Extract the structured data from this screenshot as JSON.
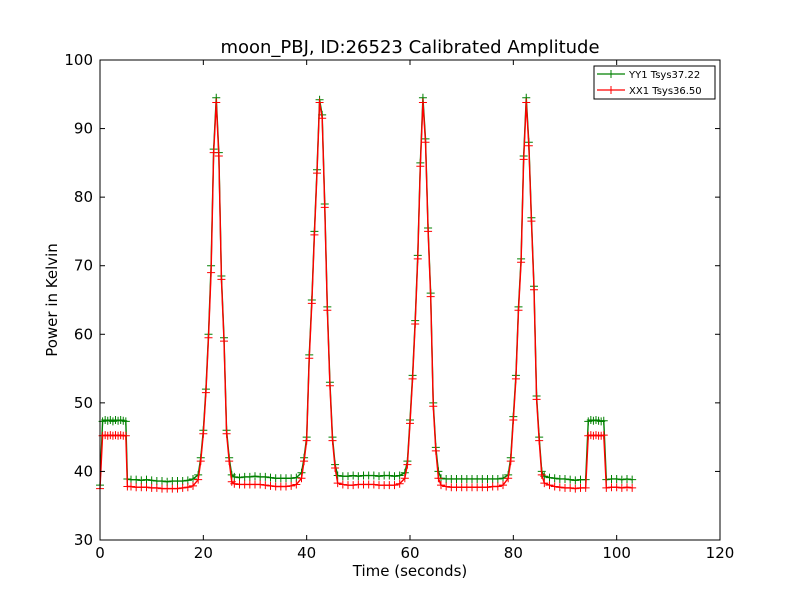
{
  "chart_data": {
    "type": "line",
    "title": "moon_PBJ, ID:26523 Calibrated Amplitude",
    "xlabel": "Time (seconds)",
    "ylabel": "Power in Kelvin",
    "xlim": [
      0,
      120
    ],
    "ylim": [
      30,
      100
    ],
    "xticks": [
      0,
      20,
      40,
      60,
      80,
      100,
      120
    ],
    "yticks": [
      30,
      40,
      50,
      60,
      70,
      80,
      90,
      100
    ],
    "xtick_labels": [
      "0",
      "20",
      "40",
      "60",
      "80",
      "100",
      "120"
    ],
    "ytick_labels": [
      "30",
      "40",
      "50",
      "60",
      "70",
      "80",
      "90",
      "100"
    ],
    "grid": false,
    "legend_position": "top-right",
    "marker": "+",
    "series": [
      {
        "name": "YY1 Tsys37.22",
        "color": "#008000",
        "points": [
          [
            0,
            38.0
          ],
          [
            0.5,
            47.3
          ],
          [
            1,
            47.5
          ],
          [
            1.5,
            47.4
          ],
          [
            2,
            47.5
          ],
          [
            2.5,
            47.3
          ],
          [
            3,
            47.5
          ],
          [
            3.5,
            47.4
          ],
          [
            4,
            47.5
          ],
          [
            4.5,
            47.4
          ],
          [
            5,
            47.3
          ],
          [
            5.3,
            38.9
          ],
          [
            6,
            38.8
          ],
          [
            7,
            38.8
          ],
          [
            8,
            38.7
          ],
          [
            9,
            38.8
          ],
          [
            10,
            38.7
          ],
          [
            11,
            38.6
          ],
          [
            12,
            38.6
          ],
          [
            13,
            38.5
          ],
          [
            14,
            38.6
          ],
          [
            15,
            38.6
          ],
          [
            16,
            38.6
          ],
          [
            17,
            38.7
          ],
          [
            18,
            38.9
          ],
          [
            19,
            39.5
          ],
          [
            19.5,
            42.0
          ],
          [
            20,
            46.0
          ],
          [
            20.5,
            52.0
          ],
          [
            21,
            60.0
          ],
          [
            21.5,
            70.0
          ],
          [
            22,
            87.0
          ],
          [
            22.5,
            94.5
          ],
          [
            23,
            86.5
          ],
          [
            23.5,
            68.5
          ],
          [
            24,
            59.5
          ],
          [
            24.5,
            46.0
          ],
          [
            25,
            42.0
          ],
          [
            25.5,
            39.5
          ],
          [
            26,
            39.2
          ],
          [
            27,
            39.1
          ],
          [
            28,
            39.2
          ],
          [
            29,
            39.2
          ],
          [
            30,
            39.3
          ],
          [
            31,
            39.2
          ],
          [
            32,
            39.2
          ],
          [
            33,
            39.1
          ],
          [
            34,
            39.0
          ],
          [
            35,
            39.0
          ],
          [
            36,
            39.0
          ],
          [
            37,
            39.0
          ],
          [
            38,
            39.1
          ],
          [
            39,
            39.8
          ],
          [
            39.5,
            42.0
          ],
          [
            40,
            45.0
          ],
          [
            40.5,
            57.0
          ],
          [
            41,
            65.0
          ],
          [
            41.5,
            75.0
          ],
          [
            42,
            84.0
          ],
          [
            42.5,
            94.2
          ],
          [
            43,
            92.0
          ],
          [
            43.5,
            79.0
          ],
          [
            44,
            64.0
          ],
          [
            44.5,
            53.0
          ],
          [
            45,
            45.0
          ],
          [
            45.5,
            41.0
          ],
          [
            46,
            39.4
          ],
          [
            47,
            39.3
          ],
          [
            48,
            39.3
          ],
          [
            49,
            39.4
          ],
          [
            50,
            39.3
          ],
          [
            51,
            39.4
          ],
          [
            52,
            39.4
          ],
          [
            53,
            39.4
          ],
          [
            54,
            39.3
          ],
          [
            55,
            39.4
          ],
          [
            56,
            39.4
          ],
          [
            57,
            39.3
          ],
          [
            58,
            39.4
          ],
          [
            59,
            39.8
          ],
          [
            59.5,
            41.5
          ],
          [
            60,
            47.5
          ],
          [
            60.5,
            54.0
          ],
          [
            61,
            62.0
          ],
          [
            61.5,
            71.5
          ],
          [
            62,
            85.0
          ],
          [
            62.5,
            94.5
          ],
          [
            63,
            88.5
          ],
          [
            63.5,
            75.5
          ],
          [
            64,
            66.0
          ],
          [
            64.5,
            50.0
          ],
          [
            65,
            43.5
          ],
          [
            65.5,
            40.0
          ],
          [
            66,
            39.0
          ],
          [
            67,
            38.9
          ],
          [
            68,
            38.9
          ],
          [
            69,
            38.9
          ],
          [
            70,
            38.9
          ],
          [
            71,
            38.9
          ],
          [
            72,
            38.9
          ],
          [
            73,
            38.9
          ],
          [
            74,
            38.9
          ],
          [
            75,
            38.9
          ],
          [
            76,
            38.9
          ],
          [
            77,
            38.9
          ],
          [
            78,
            39.0
          ],
          [
            79,
            39.5
          ],
          [
            79.5,
            42.0
          ],
          [
            80,
            48.0
          ],
          [
            80.5,
            54.0
          ],
          [
            81,
            64.0
          ],
          [
            81.5,
            71.0
          ],
          [
            82,
            86.0
          ],
          [
            82.5,
            94.5
          ],
          [
            83,
            88.0
          ],
          [
            83.5,
            77.0
          ],
          [
            84,
            67.0
          ],
          [
            84.5,
            51.0
          ],
          [
            85,
            45.0
          ],
          [
            85.5,
            40.0
          ],
          [
            86,
            39.3
          ],
          [
            87,
            39.1
          ],
          [
            88,
            39.0
          ],
          [
            89,
            38.9
          ],
          [
            90,
            38.9
          ],
          [
            91,
            38.8
          ],
          [
            92,
            38.7
          ],
          [
            93,
            38.8
          ],
          [
            94,
            38.8
          ],
          [
            94.5,
            47.3
          ],
          [
            95,
            47.5
          ],
          [
            95.5,
            47.4
          ],
          [
            96,
            47.5
          ],
          [
            96.5,
            47.4
          ],
          [
            97,
            47.3
          ],
          [
            97.5,
            47.4
          ],
          [
            98,
            38.8
          ],
          [
            99,
            38.9
          ],
          [
            100,
            38.9
          ],
          [
            101,
            38.8
          ],
          [
            102,
            38.9
          ],
          [
            103,
            38.8
          ]
        ]
      },
      {
        "name": "XX1 Tsys36.50",
        "color": "#ff0000",
        "points": [
          [
            0,
            37.5
          ],
          [
            0.5,
            45.2
          ],
          [
            1,
            45.3
          ],
          [
            1.5,
            45.2
          ],
          [
            2,
            45.3
          ],
          [
            2.5,
            45.2
          ],
          [
            3,
            45.3
          ],
          [
            3.5,
            45.2
          ],
          [
            4,
            45.3
          ],
          [
            4.5,
            45.2
          ],
          [
            5,
            45.2
          ],
          [
            5.3,
            37.8
          ],
          [
            6,
            37.8
          ],
          [
            7,
            37.7
          ],
          [
            8,
            37.7
          ],
          [
            9,
            37.7
          ],
          [
            10,
            37.6
          ],
          [
            11,
            37.6
          ],
          [
            12,
            37.5
          ],
          [
            13,
            37.5
          ],
          [
            14,
            37.5
          ],
          [
            15,
            37.5
          ],
          [
            16,
            37.6
          ],
          [
            17,
            37.7
          ],
          [
            18,
            37.9
          ],
          [
            19,
            38.8
          ],
          [
            19.5,
            41.5
          ],
          [
            20,
            45.5
          ],
          [
            20.5,
            51.5
          ],
          [
            21,
            59.5
          ],
          [
            21.5,
            69.0
          ],
          [
            22,
            86.5
          ],
          [
            22.5,
            93.8
          ],
          [
            23,
            86.0
          ],
          [
            23.5,
            68.0
          ],
          [
            24,
            59.0
          ],
          [
            24.5,
            45.5
          ],
          [
            25,
            41.5
          ],
          [
            25.5,
            38.5
          ],
          [
            26,
            38.2
          ],
          [
            27,
            38.1
          ],
          [
            28,
            38.1
          ],
          [
            29,
            38.1
          ],
          [
            30,
            38.1
          ],
          [
            31,
            38.1
          ],
          [
            32,
            38.0
          ],
          [
            33,
            37.9
          ],
          [
            34,
            37.8
          ],
          [
            35,
            37.8
          ],
          [
            36,
            37.8
          ],
          [
            37,
            37.9
          ],
          [
            38,
            38.1
          ],
          [
            39,
            39.0
          ],
          [
            39.5,
            41.5
          ],
          [
            40,
            44.5
          ],
          [
            40.5,
            56.5
          ],
          [
            41,
            64.5
          ],
          [
            41.5,
            74.5
          ],
          [
            42,
            83.5
          ],
          [
            42.5,
            93.8
          ],
          [
            43,
            91.5
          ],
          [
            43.5,
            78.5
          ],
          [
            44,
            63.5
          ],
          [
            44.5,
            52.5
          ],
          [
            45,
            44.5
          ],
          [
            45.5,
            40.5
          ],
          [
            46,
            38.3
          ],
          [
            47,
            38.1
          ],
          [
            48,
            38.0
          ],
          [
            49,
            38.0
          ],
          [
            50,
            38.1
          ],
          [
            51,
            38.1
          ],
          [
            52,
            38.1
          ],
          [
            53,
            38.1
          ],
          [
            54,
            38.0
          ],
          [
            55,
            38.0
          ],
          [
            56,
            38.0
          ],
          [
            57,
            38.0
          ],
          [
            58,
            38.2
          ],
          [
            59,
            39.0
          ],
          [
            59.5,
            41.0
          ],
          [
            60,
            47.0
          ],
          [
            60.5,
            53.5
          ],
          [
            61,
            61.5
          ],
          [
            61.5,
            71.0
          ],
          [
            62,
            84.5
          ],
          [
            62.5,
            93.8
          ],
          [
            63,
            88.0
          ],
          [
            63.5,
            75.0
          ],
          [
            64,
            65.5
          ],
          [
            64.5,
            49.5
          ],
          [
            65,
            43.0
          ],
          [
            65.5,
            39.0
          ],
          [
            66,
            38.0
          ],
          [
            67,
            37.8
          ],
          [
            68,
            37.7
          ],
          [
            69,
            37.7
          ],
          [
            70,
            37.7
          ],
          [
            71,
            37.7
          ],
          [
            72,
            37.7
          ],
          [
            73,
            37.7
          ],
          [
            74,
            37.7
          ],
          [
            75,
            37.7
          ],
          [
            76,
            37.8
          ],
          [
            77,
            37.8
          ],
          [
            78,
            38.0
          ],
          [
            79,
            39.0
          ],
          [
            79.5,
            41.5
          ],
          [
            80,
            47.5
          ],
          [
            80.5,
            53.5
          ],
          [
            81,
            63.5
          ],
          [
            81.5,
            70.5
          ],
          [
            82,
            85.5
          ],
          [
            82.5,
            93.8
          ],
          [
            83,
            87.5
          ],
          [
            83.5,
            76.5
          ],
          [
            84,
            66.5
          ],
          [
            84.5,
            50.5
          ],
          [
            85,
            44.5
          ],
          [
            85.5,
            39.5
          ],
          [
            86,
            38.3
          ],
          [
            87,
            38.0
          ],
          [
            88,
            37.8
          ],
          [
            89,
            37.7
          ],
          [
            90,
            37.6
          ],
          [
            91,
            37.6
          ],
          [
            92,
            37.5
          ],
          [
            93,
            37.6
          ],
          [
            94,
            37.6
          ],
          [
            94.5,
            45.2
          ],
          [
            95,
            45.3
          ],
          [
            95.5,
            45.2
          ],
          [
            96,
            45.3
          ],
          [
            96.5,
            45.2
          ],
          [
            97,
            45.2
          ],
          [
            97.5,
            45.3
          ],
          [
            98,
            37.6
          ],
          [
            99,
            37.7
          ],
          [
            100,
            37.7
          ],
          [
            101,
            37.6
          ],
          [
            102,
            37.7
          ],
          [
            103,
            37.6
          ]
        ]
      }
    ]
  }
}
